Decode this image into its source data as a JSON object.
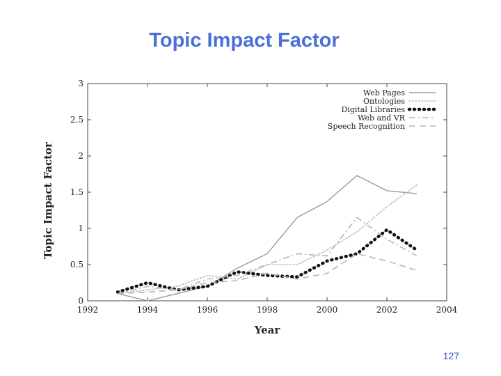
{
  "slide": {
    "title": "Topic Impact Factor",
    "page_number": "127"
  },
  "chart_data": {
    "type": "line",
    "title": "",
    "xlabel": "Year",
    "ylabel": "Topic Impact Factor",
    "xlim": [
      1992,
      2004
    ],
    "ylim": [
      0,
      3
    ],
    "x_ticks": [
      1992,
      1994,
      1996,
      1998,
      2000,
      2002,
      2004
    ],
    "y_ticks": [
      0,
      0.5,
      1,
      1.5,
      2,
      2.5,
      3
    ],
    "y_tick_labels": [
      "0",
      "0.5",
      "1",
      "1.5",
      "2",
      "2.5",
      "3"
    ],
    "grid": false,
    "legend_position": "top-right",
    "series": [
      {
        "name": "Web Pages",
        "style": "solid",
        "color": "#9a9a9a",
        "x": [
          1993,
          1994,
          1995,
          1996,
          1997,
          1998,
          1999,
          2000,
          2001,
          2002,
          2003
        ],
        "y": [
          0.1,
          0.0,
          0.1,
          0.2,
          0.45,
          0.65,
          1.15,
          1.37,
          1.73,
          1.52,
          1.48
        ]
      },
      {
        "name": "Ontologies",
        "style": "dotted",
        "color": "#b5b5b5",
        "x": [
          1993,
          1994,
          1995,
          1996,
          1997,
          1998,
          1999,
          2000,
          2001,
          2002,
          2003
        ],
        "y": [
          0.1,
          0.15,
          0.2,
          0.35,
          0.3,
          0.5,
          0.5,
          0.7,
          0.95,
          1.3,
          1.6
        ]
      },
      {
        "name": "Digital Libraries",
        "style": "thick-dotted",
        "color": "#111111",
        "x": [
          1993,
          1994,
          1995,
          1996,
          1997,
          1998,
          1999,
          2000,
          2001,
          2002,
          2003
        ],
        "y": [
          0.12,
          0.25,
          0.15,
          0.2,
          0.4,
          0.35,
          0.33,
          0.55,
          0.65,
          0.98,
          0.7
        ]
      },
      {
        "name": "Web and VR",
        "style": "dash-dot",
        "color": "#b5b5b5",
        "x": [
          1993,
          1994,
          1995,
          1996,
          1997,
          1998,
          1999,
          2000,
          2001,
          2002,
          2003
        ],
        "y": [
          0.1,
          0.2,
          0.15,
          0.3,
          0.35,
          0.5,
          0.65,
          0.62,
          1.15,
          0.85,
          0.62
        ]
      },
      {
        "name": "Speech Recognition",
        "style": "dashed",
        "color": "#b5b5b5",
        "x": [
          1993,
          1994,
          1995,
          1996,
          1997,
          1998,
          1999,
          2000,
          2001,
          2002,
          2003
        ],
        "y": [
          0.1,
          0.12,
          0.15,
          0.25,
          0.28,
          0.38,
          0.3,
          0.38,
          0.65,
          0.55,
          0.42
        ]
      }
    ]
  }
}
